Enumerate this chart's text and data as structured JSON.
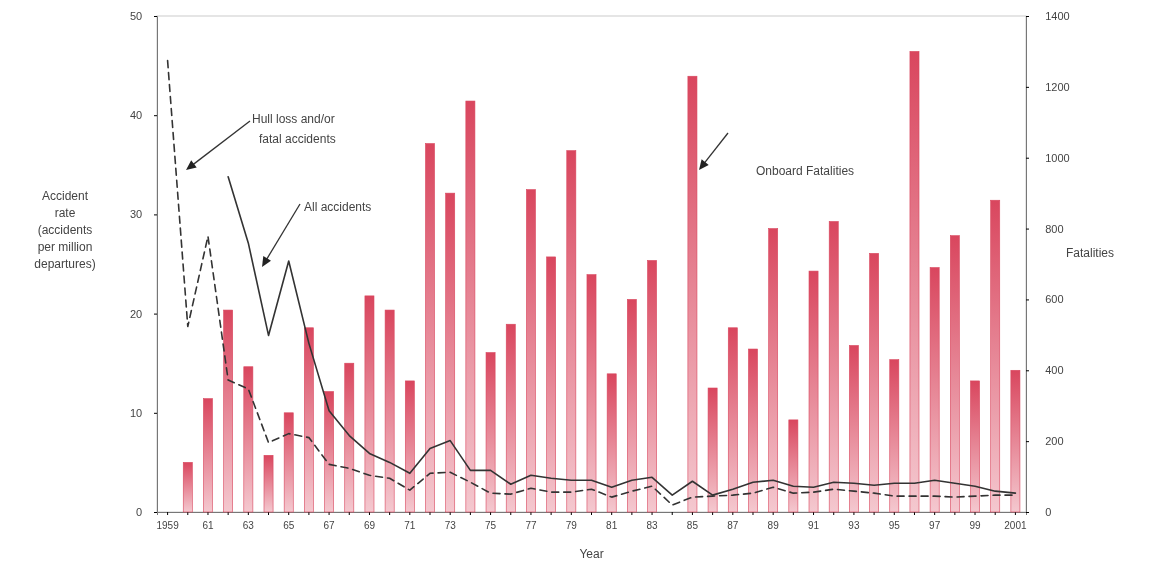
{
  "chart_data": {
    "type": "bar",
    "xlabel": "Year",
    "ylabel": "Accident rate (accidents per million departures)",
    "y2label": "Fatalities",
    "categories": [
      "1959",
      null,
      "61",
      null,
      "63",
      null,
      "65",
      null,
      "67",
      null,
      "69",
      null,
      "71",
      null,
      "73",
      null,
      "75",
      null,
      "77",
      null,
      "79",
      null,
      "81",
      null,
      "83",
      null,
      "85",
      null,
      "87",
      null,
      "89",
      null,
      "91",
      null,
      "93",
      null,
      "95",
      null,
      "97",
      null,
      "99",
      null,
      "2001"
    ],
    "series": [
      {
        "axis": "y2",
        "color": "#d9465e",
        "values": [
          0,
          140,
          320,
          570,
          410,
          160,
          280,
          520,
          340,
          420,
          610,
          570,
          370,
          1040,
          900,
          1160,
          450,
          530,
          910,
          720,
          1020,
          670,
          390,
          600,
          710,
          0,
          1230,
          350,
          520,
          460,
          800,
          260,
          680,
          820,
          470,
          730,
          430,
          1300,
          690,
          780,
          370,
          880,
          400
        ]
      },
      {
        "type": "line",
        "color": "#333333",
        "line_style": "dashed",
        "values": [
          45.5,
          18.7,
          27.8,
          13.3,
          12.4,
          7.0,
          7.9,
          7.5,
          4.8,
          4.4,
          3.7,
          3.4,
          2.2,
          3.9,
          4.0,
          3.0,
          1.9,
          1.8,
          2.4,
          2.0,
          2.0,
          2.3,
          1.5,
          2.1,
          2.6,
          0.7,
          1.5,
          1.6,
          1.7,
          1.9,
          2.5,
          1.9,
          2.0,
          2.3,
          2.1,
          1.9,
          1.6,
          1.6,
          1.6,
          1.5,
          1.6,
          1.7,
          1.7
        ]
      },
      {
        "type": "line",
        "color": "#333333",
        "line_style": "solid",
        "values": [
          null,
          null,
          null,
          33.8,
          27.1,
          17.8,
          25.3,
          17.0,
          10.2,
          7.7,
          5.9,
          5.0,
          3.9,
          6.4,
          7.2,
          4.2,
          4.2,
          2.8,
          3.7,
          3.4,
          3.2,
          3.2,
          2.5,
          3.2,
          3.5,
          1.7,
          3.1,
          1.7,
          2.3,
          3.0,
          3.2,
          2.6,
          2.5,
          3.0,
          2.9,
          2.7,
          2.9,
          2.9,
          3.2,
          2.9,
          2.6,
          2.1,
          1.9
        ]
      }
    ],
    "ylim": [
      0,
      50
    ],
    "yticks": [
      0,
      10,
      20,
      30,
      40,
      50
    ],
    "y2lim": [
      0,
      1400
    ],
    "y2ticks": [
      0,
      200,
      400,
      600,
      800,
      1000,
      1200,
      1400
    ],
    "annotations": [
      "Onboard Fatalities",
      "Hull loss and/or fatal accidents",
      "All accidents"
    ],
    "grid": false
  }
}
